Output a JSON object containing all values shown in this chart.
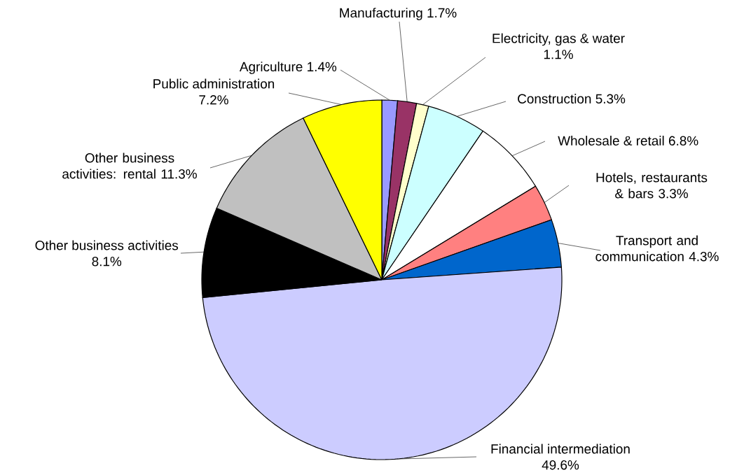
{
  "chart_data": {
    "type": "pie",
    "categories": [
      "Agriculture",
      "Manufacturing",
      "Electricity, gas & water",
      "Construction",
      "Wholesale & retail",
      "Hotels, restaurants & bars",
      "Transport and communication",
      "Financial intermediation",
      "Other business activities",
      "Other business activities: rental",
      "Public administration"
    ],
    "values": [
      1.4,
      1.7,
      1.1,
      5.3,
      6.8,
      3.3,
      4.3,
      49.6,
      8.1,
      11.3,
      7.2
    ],
    "value_labels": [
      "1.4%",
      "1.7%",
      "1.1%",
      "5.3%",
      "6.8%",
      "3.3%",
      "4.3%",
      "49.6%",
      "8.1%",
      "11.3%",
      "7.2%"
    ],
    "colors": [
      "#9999ff",
      "#993366",
      "#ffffcc",
      "#ccffff",
      "#ffffff",
      "#ff8080",
      "#0066cc",
      "#ccccff",
      "#000000",
      "#c0c0c0",
      "#ffff00"
    ]
  }
}
